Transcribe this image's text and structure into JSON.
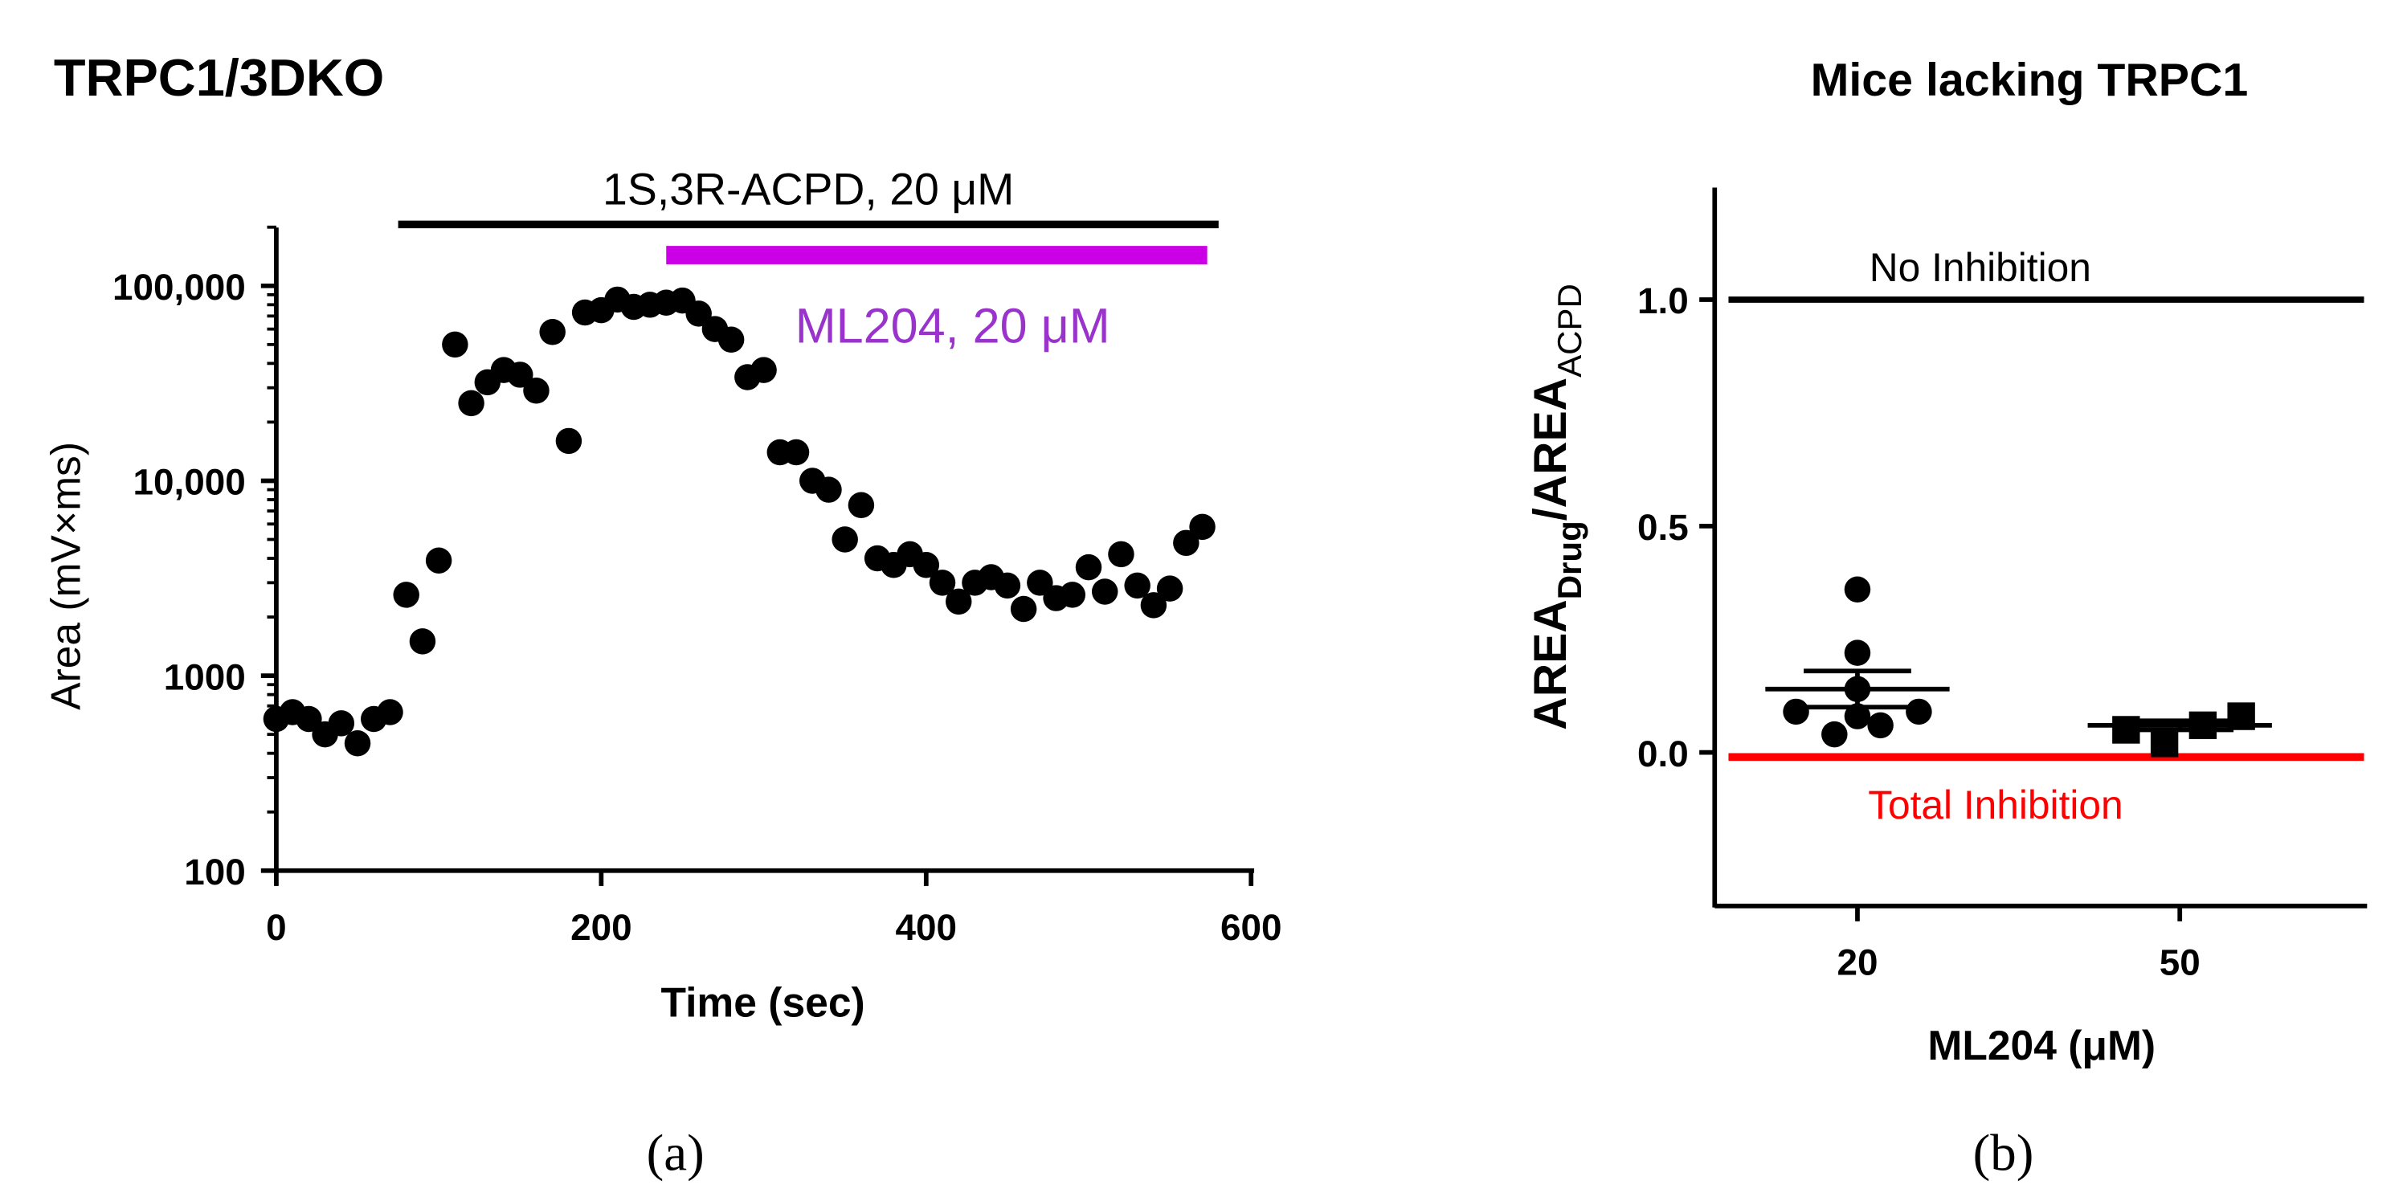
{
  "chart_data": [
    {
      "type": "scatter",
      "title": "TRPC1/3DKO",
      "xlabel": "Time (sec)",
      "ylabel": "Area (mV×ms)",
      "yscale": "log",
      "xlim": [
        0,
        600
      ],
      "ylim": [
        100,
        200000
      ],
      "xticks": [
        0,
        200,
        400,
        600
      ],
      "xtick_labels": [
        "0",
        "200",
        "400",
        "600"
      ],
      "yticks": [
        100,
        1000,
        10000,
        100000
      ],
      "ytick_labels": [
        "100",
        "1000",
        "10,000",
        "100,000"
      ],
      "annotations": [
        {
          "label": "1S,3R-ACPD, 20 μM",
          "start": 75,
          "end": 580,
          "color": "#000000"
        },
        {
          "label": "ML204, 20 μM",
          "start": 240,
          "end": 573,
          "color": "#cc00e6",
          "text_color": "#9933cc"
        }
      ],
      "x": [
        0,
        10,
        20,
        30,
        40,
        50,
        60,
        70,
        80,
        90,
        100,
        110,
        120,
        130,
        140,
        150,
        160,
        170,
        180,
        190,
        200,
        210,
        220,
        230,
        240,
        250,
        260,
        270,
        280,
        290,
        300,
        310,
        320,
        330,
        340,
        350,
        360,
        370,
        380,
        390,
        400,
        410,
        420,
        430,
        440,
        450,
        460,
        470,
        480,
        490,
        500,
        510,
        520,
        530,
        540,
        550,
        560,
        570
      ],
      "y": [
        600,
        650,
        600,
        500,
        570,
        450,
        600,
        650,
        2600,
        1500,
        3900,
        50000,
        25000,
        32000,
        37000,
        35000,
        29000,
        58000,
        16000,
        73000,
        75000,
        85000,
        78000,
        80000,
        82000,
        84000,
        72000,
        60000,
        53000,
        34000,
        37000,
        14000,
        14000,
        10000,
        9000,
        5000,
        7500,
        4000,
        3700,
        4200,
        3700,
        3000,
        2400,
        3000,
        3200,
        2900,
        2200,
        3000,
        2500,
        2600,
        3600,
        2700,
        4200,
        2900,
        2300,
        2800,
        4800,
        5800
      ],
      "panel_label": "(a)"
    },
    {
      "type": "scatter",
      "title": "Mice lacking TRPC1",
      "xlabel": "ML204 (μM)",
      "ylabel_main": "AREA",
      "ylabel_sub1": "Drug",
      "ylabel_mid": "/AREA",
      "ylabel_sub2": "ACPD",
      "ylim": [
        -0.34,
        1.25
      ],
      "yticks": [
        0.0,
        0.5,
        1.0
      ],
      "ytick_labels": [
        "0.0",
        "0.5",
        "1.0"
      ],
      "categories": [
        "20",
        "50"
      ],
      "series": [
        {
          "name": "20",
          "marker": "circle",
          "values": [
            0.36,
            0.22,
            0.14,
            0.09,
            0.09,
            0.04,
            0.06,
            0.08
          ],
          "mean": 0.14,
          "sem": 0.04
        },
        {
          "name": "50",
          "marker": "square",
          "values": [
            0.05,
            0.02,
            0.06,
            0.08
          ],
          "mean": 0.06,
          "sem": 0.01
        }
      ],
      "reference_lines": [
        {
          "value": 1.0,
          "label": "No Inhibition",
          "color": "#000000"
        },
        {
          "value": -0.01,
          "label": "Total Inhibition",
          "color": "#ff0000"
        }
      ],
      "panel_label": "(b)"
    }
  ]
}
